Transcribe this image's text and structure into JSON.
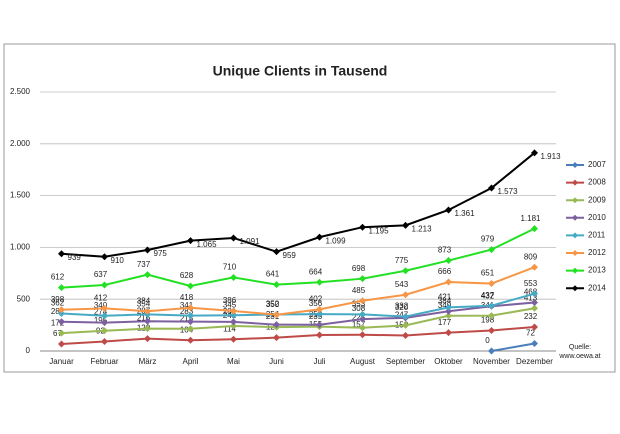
{
  "chart_data": {
    "type": "line",
    "title": "Unique Clients in Tausend",
    "categories": [
      "Januar",
      "Februar",
      "März",
      "April",
      "Mai",
      "Juni",
      "Juli",
      "August",
      "September",
      "Oktober",
      "November",
      "Dezember"
    ],
    "ylim": [
      0,
      2500
    ],
    "yticks": [
      0,
      500,
      {
        "value": 1000,
        "label": "1.000"
      },
      {
        "value": 1500,
        "label": "1.500"
      },
      {
        "value": 2000,
        "label": "2.000"
      },
      {
        "value": 2500,
        "label": "2.500"
      }
    ],
    "grid": true,
    "legend": "right",
    "source_lines": [
      "Quelle:",
      "www.oewa.at"
    ],
    "series": [
      {
        "name": "2007",
        "color": "#4a7ebb",
        "values": [
          null,
          null,
          null,
          null,
          null,
          null,
          null,
          null,
          null,
          null,
          0,
          72
        ]
      },
      {
        "name": "2008",
        "color": "#be4b48",
        "values": [
          67,
          92,
          120,
          104,
          114,
          129,
          155,
          157,
          150,
          177,
          198,
          232
        ]
      },
      {
        "name": "2009",
        "color": "#98b954",
        "values": [
          172,
          195,
          216,
          215,
          241,
          231,
          235,
          225,
          247,
          340,
          341,
          413
        ]
      },
      {
        "name": "2010",
        "color": "#7d60a0",
        "values": [
          282,
          274,
          287,
          283,
          281,
          254,
          253,
          308,
          320,
          384,
          432,
          468
        ]
      },
      {
        "name": "2011",
        "color": "#46aac5",
        "values": [
          362,
          340,
          354,
          341,
          345,
          352,
          356,
          353,
          332,
          421,
          437,
          553
        ]
      },
      {
        "name": "2012",
        "color": "#f79646",
        "values": [
          398,
          412,
          384,
          418,
          386,
          350,
          402,
          485,
          543,
          666,
          651,
          809
        ]
      },
      {
        "name": "2013",
        "color": "#22e022",
        "values": [
          612,
          637,
          737,
          628,
          710,
          641,
          664,
          698,
          775,
          873,
          979,
          1181
        ],
        "value_labels": [
          "612",
          "637",
          "737",
          "628",
          "710",
          "641",
          "664",
          "698",
          "775",
          "873",
          "979",
          "1.181"
        ]
      },
      {
        "name": "2014",
        "color": "#000000",
        "values": [
          939,
          910,
          975,
          1065,
          1091,
          959,
          1099,
          1195,
          1213,
          1361,
          1573,
          1913
        ],
        "value_labels": [
          "939",
          "910",
          "975",
          "1.065",
          "1.091",
          "959",
          "1.099",
          "1.195",
          "1.213",
          "1.361",
          "1.573",
          "1.913"
        ]
      }
    ]
  }
}
